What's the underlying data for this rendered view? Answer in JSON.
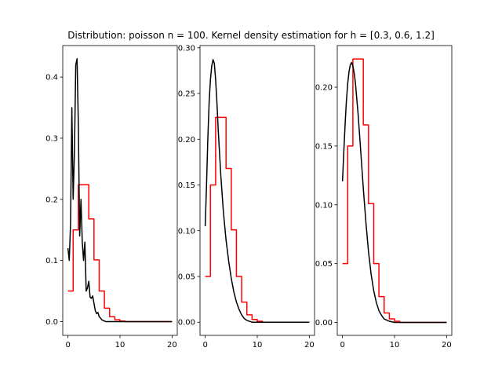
{
  "figure": {
    "title": "Distribution: poisson n = 100. Kernel density estimation for h = [0.3, 0.6, 1.2]"
  },
  "chart_data": [
    {
      "type": "line",
      "xlim": [
        -1,
        21
      ],
      "ylim": [
        -0.0225,
        0.4515
      ],
      "xticks": [
        0,
        10,
        20
      ],
      "yticks": [
        0.0,
        0.1,
        0.2,
        0.3,
        0.4
      ],
      "ytick_decimals": 1,
      "series": [
        {
          "color": "#ff0000",
          "step": true,
          "x": [
            0,
            1,
            2,
            3,
            4,
            5,
            6,
            7,
            8,
            9,
            10,
            11,
            12,
            13,
            14,
            15,
            16,
            17,
            18,
            19,
            20
          ],
          "values": [
            0.05,
            0.15,
            0.224,
            0.224,
            0.168,
            0.101,
            0.05,
            0.022,
            0.008,
            0.003,
            0.001,
            0,
            0,
            0,
            0,
            0,
            0,
            0,
            0,
            0,
            0
          ]
        },
        {
          "color": "#000000",
          "step": false,
          "x": [
            0,
            0.25,
            0.5,
            0.75,
            1.0,
            1.25,
            1.5,
            1.75,
            2.0,
            2.25,
            2.5,
            2.75,
            3.0,
            3.25,
            3.5,
            3.75,
            4.0,
            4.25,
            4.5,
            4.75,
            5.0,
            5.25,
            5.5,
            5.75,
            6.0,
            6.25,
            6.5,
            6.75,
            7.0,
            7.25,
            7.5,
            7.75,
            8.0,
            8.5,
            9.0,
            10,
            12,
            14,
            16,
            18,
            20
          ],
          "values": [
            0.12,
            0.1,
            0.16,
            0.35,
            0.2,
            0.28,
            0.42,
            0.43,
            0.32,
            0.14,
            0.2,
            0.13,
            0.1,
            0.13,
            0.05,
            0.055,
            0.066,
            0.04,
            0.038,
            0.042,
            0.03,
            0.018,
            0.013,
            0.015,
            0.008,
            0.006,
            0.003,
            0.002,
            0.001,
            0,
            0,
            0,
            0,
            0,
            0,
            0,
            0,
            0,
            0,
            0,
            0
          ]
        }
      ]
    },
    {
      "type": "line",
      "xlim": [
        -1,
        21
      ],
      "ylim": [
        -0.0144,
        0.3024
      ],
      "xticks": [
        0,
        10,
        20
      ],
      "yticks": [
        0.0,
        0.05,
        0.1,
        0.15,
        0.2,
        0.25,
        0.3
      ],
      "ytick_decimals": 2,
      "series": [
        {
          "color": "#ff0000",
          "step": true,
          "x": [
            0,
            1,
            2,
            3,
            4,
            5,
            6,
            7,
            8,
            9,
            10,
            11,
            12,
            13,
            14,
            15,
            16,
            17,
            18,
            19,
            20
          ],
          "values": [
            0.05,
            0.15,
            0.224,
            0.224,
            0.168,
            0.101,
            0.05,
            0.022,
            0.008,
            0.003,
            0.001,
            0,
            0,
            0,
            0,
            0,
            0,
            0,
            0,
            0,
            0
          ]
        },
        {
          "color": "#000000",
          "step": false,
          "x": [
            0,
            0.25,
            0.5,
            0.75,
            1.0,
            1.25,
            1.5,
            1.75,
            2.0,
            2.25,
            2.5,
            3.0,
            3.5,
            4.0,
            4.5,
            5.0,
            5.5,
            6.0,
            6.5,
            7.0,
            7.5,
            8.0,
            8.5,
            9.0,
            10,
            12,
            14,
            16,
            18,
            20
          ],
          "values": [
            0.105,
            0.15,
            0.2,
            0.24,
            0.265,
            0.28,
            0.287,
            0.283,
            0.265,
            0.24,
            0.21,
            0.16,
            0.12,
            0.09,
            0.067,
            0.048,
            0.033,
            0.022,
            0.014,
            0.008,
            0.004,
            0.002,
            0.001,
            0,
            0,
            0,
            0,
            0,
            0,
            0
          ]
        }
      ]
    },
    {
      "type": "line",
      "xlim": [
        -1,
        21
      ],
      "ylim": [
        -0.011,
        0.2354
      ],
      "xticks": [
        0,
        10,
        20
      ],
      "yticks": [
        0.0,
        0.05,
        0.1,
        0.15,
        0.2
      ],
      "ytick_decimals": 2,
      "series": [
        {
          "color": "#ff0000",
          "step": true,
          "x": [
            0,
            1,
            2,
            3,
            4,
            5,
            6,
            7,
            8,
            9,
            10,
            11,
            12,
            13,
            14,
            15,
            16,
            17,
            18,
            19,
            20
          ],
          "values": [
            0.05,
            0.15,
            0.224,
            0.224,
            0.168,
            0.101,
            0.05,
            0.022,
            0.008,
            0.003,
            0.001,
            0,
            0,
            0,
            0,
            0,
            0,
            0,
            0,
            0,
            0
          ]
        },
        {
          "color": "#000000",
          "step": false,
          "x": [
            0,
            0.25,
            0.5,
            0.75,
            1.0,
            1.25,
            1.5,
            1.75,
            2.0,
            2.25,
            2.5,
            3.0,
            3.5,
            4.0,
            4.5,
            5.0,
            5.5,
            6.0,
            6.5,
            7.0,
            7.5,
            8.0,
            8.5,
            9.0,
            10,
            12,
            14,
            16,
            18,
            20
          ],
          "values": [
            0.12,
            0.145,
            0.168,
            0.188,
            0.203,
            0.213,
            0.219,
            0.221,
            0.218,
            0.212,
            0.203,
            0.177,
            0.146,
            0.114,
            0.085,
            0.06,
            0.041,
            0.027,
            0.017,
            0.01,
            0.006,
            0.003,
            0.002,
            0.001,
            0,
            0,
            0,
            0,
            0,
            0
          ]
        }
      ]
    }
  ]
}
